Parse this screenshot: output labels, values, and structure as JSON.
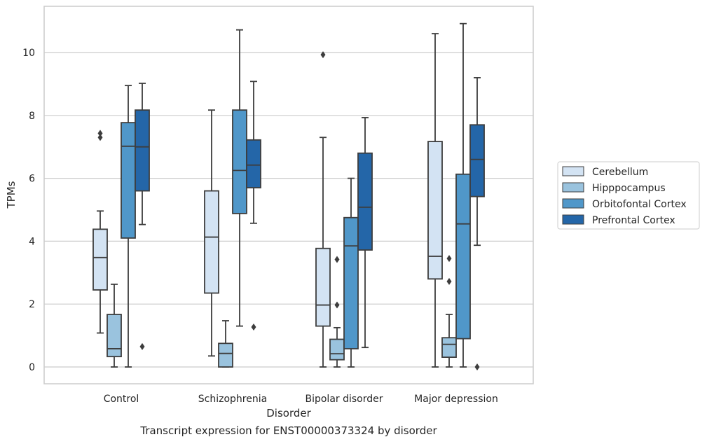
{
  "caption": "Transcript expression for ENST00000373324 by disorder",
  "chart_data": {
    "type": "box",
    "title": "",
    "xlabel": "Disorder",
    "ylabel": "TPMs",
    "ylim": [
      -0.5,
      11.45
    ],
    "yticks": [
      0,
      2,
      4,
      6,
      8,
      10
    ],
    "grid": "y",
    "legend_position": "right",
    "categories": [
      "Control",
      "Schizophrenia",
      "Bipolar disorder",
      "Major depression"
    ],
    "series": [
      {
        "name": "Cerebellum",
        "color": "#d3e3f3",
        "boxes": [
          {
            "whislo": 1.08,
            "q1": 2.45,
            "med": 3.48,
            "q3": 4.38,
            "whishi": 4.96,
            "fliers": [
              7.3,
              7.43
            ]
          },
          {
            "whislo": 0.35,
            "q1": 2.35,
            "med": 4.13,
            "q3": 5.6,
            "whishi": 8.17,
            "fliers": []
          },
          {
            "whislo": 0.0,
            "q1": 1.3,
            "med": 1.97,
            "q3": 3.77,
            "whishi": 7.3,
            "fliers": [
              9.93
            ]
          },
          {
            "whislo": 0.0,
            "q1": 2.8,
            "med": 3.52,
            "q3": 7.17,
            "whishi": 10.6,
            "fliers": []
          }
        ]
      },
      {
        "name": "Hipppocampus",
        "color": "#9ac3de",
        "boxes": [
          {
            "whislo": 0.0,
            "q1": 0.33,
            "med": 0.58,
            "q3": 1.67,
            "whishi": 2.63,
            "fliers": []
          },
          {
            "whislo": 0.0,
            "q1": 0.0,
            "med": 0.43,
            "q3": 0.75,
            "whishi": 1.47,
            "fliers": []
          },
          {
            "whislo": 0.0,
            "q1": 0.23,
            "med": 0.42,
            "q3": 0.88,
            "whishi": 1.25,
            "fliers": [
              1.97,
              3.42
            ]
          },
          {
            "whislo": 0.0,
            "q1": 0.31,
            "med": 0.72,
            "q3": 0.93,
            "whishi": 1.67,
            "fliers": [
              2.72,
              3.45
            ]
          }
        ]
      },
      {
        "name": "Orbitofontal Cortex",
        "color": "#5097c9",
        "boxes": [
          {
            "whislo": 0.0,
            "q1": 4.1,
            "med": 7.02,
            "q3": 7.77,
            "whishi": 8.95,
            "fliers": []
          },
          {
            "whislo": 1.3,
            "q1": 4.88,
            "med": 6.25,
            "q3": 8.17,
            "whishi": 10.72,
            "fliers": []
          },
          {
            "whislo": 0.0,
            "q1": 0.58,
            "med": 3.85,
            "q3": 4.75,
            "whishi": 6.0,
            "fliers": []
          },
          {
            "whislo": 0.0,
            "q1": 0.9,
            "med": 4.55,
            "q3": 6.13,
            "whishi": 10.92,
            "fliers": []
          }
        ]
      },
      {
        "name": "Prefrontal Cortex",
        "color": "#2466a8",
        "boxes": [
          {
            "whislo": 4.53,
            "q1": 5.6,
            "med": 7.0,
            "q3": 8.17,
            "whishi": 9.02,
            "fliers": [
              0.65
            ]
          },
          {
            "whislo": 4.57,
            "q1": 5.7,
            "med": 6.42,
            "q3": 7.22,
            "whishi": 9.08,
            "fliers": [
              1.27
            ]
          },
          {
            "whislo": 0.62,
            "q1": 3.72,
            "med": 5.08,
            "q3": 6.8,
            "whishi": 7.93,
            "fliers": []
          },
          {
            "whislo": 3.87,
            "q1": 5.42,
            "med": 6.6,
            "q3": 7.7,
            "whishi": 9.2,
            "fliers": [
              0.0
            ]
          }
        ]
      }
    ]
  }
}
